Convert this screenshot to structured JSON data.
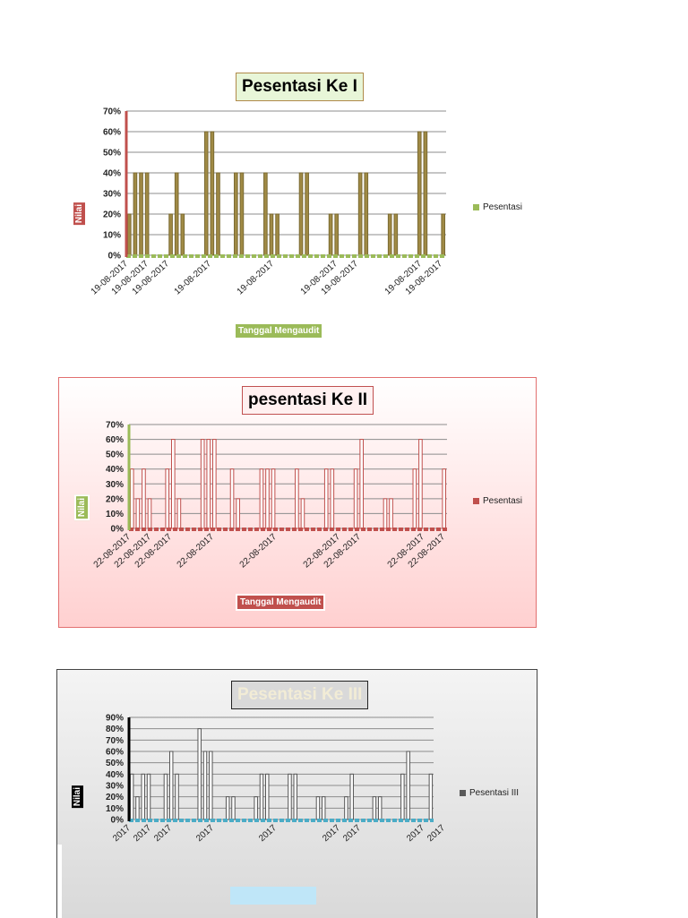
{
  "chart_data": [
    {
      "type": "bar",
      "title": "Pesentasi Ke I",
      "ylabel": "Nilai",
      "xlabel": "Tanggal Mengaudit",
      "ylim": [
        0,
        70
      ],
      "yticks": [
        "0%",
        "10%",
        "20%",
        "30%",
        "40%",
        "50%",
        "60%",
        "70%"
      ],
      "grid": true,
      "legend_position": "right",
      "colors": {
        "bar": "#a08a45",
        "bar_edge": "#7a6a32",
        "y_axis": "#c0504d",
        "x_axis": "#9bbb59"
      },
      "series": [
        {
          "name": "Pesentasi",
          "values": [
            20,
            40,
            40,
            40,
            0,
            0,
            0,
            20,
            40,
            20,
            0,
            0,
            0,
            60,
            60,
            40,
            0,
            0,
            40,
            40,
            0,
            0,
            0,
            40,
            20,
            20,
            0,
            0,
            0,
            40,
            40,
            0,
            0,
            0,
            20,
            20,
            0,
            0,
            0,
            40,
            40,
            0,
            0,
            0,
            20,
            20,
            0,
            0,
            0,
            60,
            60,
            0,
            0,
            20
          ]
        }
      ],
      "tick_labels": [
        "19-08-2017",
        "19-08-2017",
        "19-08-2017",
        "19-08-2017",
        "19-08-2017",
        "19-08-2017",
        "19-08-2017",
        "19-08-2017",
        "19-08-2017"
      ]
    },
    {
      "type": "bar",
      "title": "pesentasi Ke II",
      "ylabel": "Nilai",
      "xlabel": "Tanggal Mengaudit",
      "ylim": [
        0,
        70
      ],
      "yticks": [
        "0%",
        "10%",
        "20%",
        "30%",
        "40%",
        "50%",
        "60%",
        "70%"
      ],
      "grid": true,
      "legend_position": "right",
      "colors": {
        "bar": "#ffffff",
        "bar_edge": "#c0504d",
        "y_axis": "#9bbb59",
        "x_axis": "#c0504d"
      },
      "series": [
        {
          "name": "Pesentasi",
          "values": [
            40,
            20,
            40,
            20,
            0,
            0,
            40,
            60,
            20,
            0,
            0,
            0,
            60,
            60,
            60,
            0,
            0,
            40,
            20,
            0,
            0,
            0,
            40,
            40,
            40,
            0,
            0,
            0,
            40,
            20,
            0,
            0,
            0,
            40,
            40,
            0,
            0,
            0,
            40,
            60,
            0,
            0,
            0,
            20,
            20,
            0,
            0,
            0,
            40,
            60,
            0,
            0,
            0,
            40
          ]
        }
      ],
      "tick_labels": [
        "22-08-2017",
        "22-08-2017",
        "22-08-2017",
        "22-08-2017",
        "22-08-2017",
        "22-08-2017",
        "22-08-2017",
        "22-08-2017",
        "22-08-2017"
      ]
    },
    {
      "type": "bar",
      "title": "Pesentasi Ke III",
      "ylabel": "Nilai",
      "xlabel": "",
      "ylim": [
        0,
        90
      ],
      "yticks": [
        "0%",
        "10%",
        "20%",
        "30%",
        "40%",
        "50%",
        "60%",
        "70%",
        "80%",
        "90%"
      ],
      "grid": true,
      "legend_position": "right",
      "colors": {
        "bar": "#ffffff",
        "bar_edge": "#555555",
        "y_axis": "#000000",
        "x_axis": "#4bacc6"
      },
      "series": [
        {
          "name": "Pesentasi III",
          "values": [
            40,
            20,
            40,
            40,
            0,
            0,
            40,
            60,
            40,
            0,
            0,
            0,
            80,
            60,
            60,
            0,
            0,
            20,
            20,
            0,
            0,
            0,
            20,
            40,
            40,
            0,
            0,
            0,
            40,
            40,
            0,
            0,
            0,
            20,
            20,
            0,
            0,
            0,
            20,
            40,
            0,
            0,
            0,
            20,
            20,
            0,
            0,
            0,
            40,
            60,
            0,
            0,
            0,
            40
          ]
        }
      ],
      "tick_labels": [
        "2017",
        "2017",
        "2017",
        "2017",
        "2017",
        "2017",
        "2017",
        "2017",
        "2017"
      ]
    }
  ]
}
